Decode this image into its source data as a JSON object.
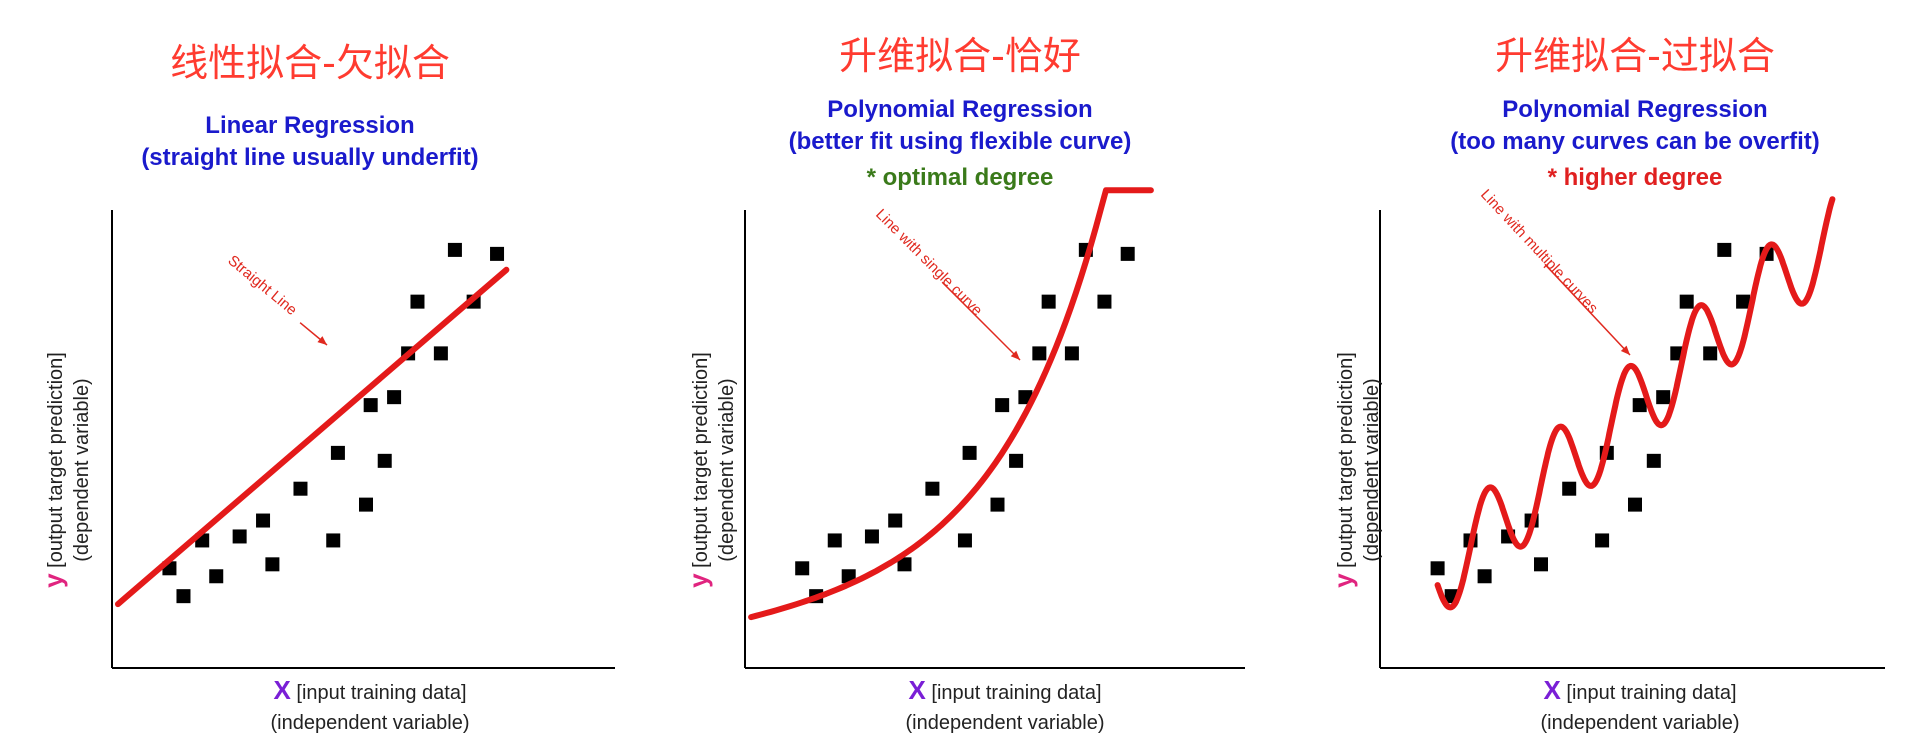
{
  "panels": [
    {
      "id": "underfit",
      "cn_title": "线性拟合-欠拟合",
      "title_lines": [
        "Linear Regression",
        "(straight line usually underfit)"
      ],
      "degree_note": "",
      "annotation": "Straight Line",
      "fit": "linear"
    },
    {
      "id": "optimal",
      "cn_title": "升维拟合-恰好",
      "title_lines": [
        "Polynomial Regression",
        "(better fit using flexible curve)"
      ],
      "degree_note": "* optimal degree",
      "degree_color": "#3a7a1a",
      "annotation": "Line with single curve",
      "fit": "curve"
    },
    {
      "id": "overfit",
      "cn_title": "升维拟合-过拟合",
      "title_lines": [
        "Polynomial Regression",
        "(too many curves can be overfit)"
      ],
      "degree_note": "* higher degree",
      "degree_color": "#e02020",
      "annotation": "Line with multiple curves",
      "fit": "wiggle"
    }
  ],
  "axis_labels": {
    "y_var": "y",
    "y_line1": " [output target prediction]",
    "y_line2": "(dependent variable)",
    "x_var": "X",
    "x_line1": " [input training data]",
    "x_line2": "(independent variable)"
  },
  "colors": {
    "fit_line": "#e41a1a",
    "points": "#000000",
    "annotation": "#e0291f",
    "title": "#1a1acc",
    "cn_title": "#ff3b30"
  },
  "chart_data": {
    "type": "scatter",
    "xlim": [
      0,
      100
    ],
    "ylim": [
      0,
      100
    ],
    "points": [
      [
        8,
        15
      ],
      [
        11,
        8
      ],
      [
        15,
        22
      ],
      [
        18,
        13
      ],
      [
        23,
        23
      ],
      [
        28,
        27
      ],
      [
        30,
        16
      ],
      [
        36,
        35
      ],
      [
        43,
        22
      ],
      [
        44,
        44
      ],
      [
        50,
        31
      ],
      [
        51,
        56
      ],
      [
        54,
        42
      ],
      [
        56,
        58
      ],
      [
        59,
        69
      ],
      [
        61,
        82
      ],
      [
        66,
        69
      ],
      [
        69,
        95
      ],
      [
        73,
        82
      ],
      [
        78,
        94
      ]
    ]
  }
}
